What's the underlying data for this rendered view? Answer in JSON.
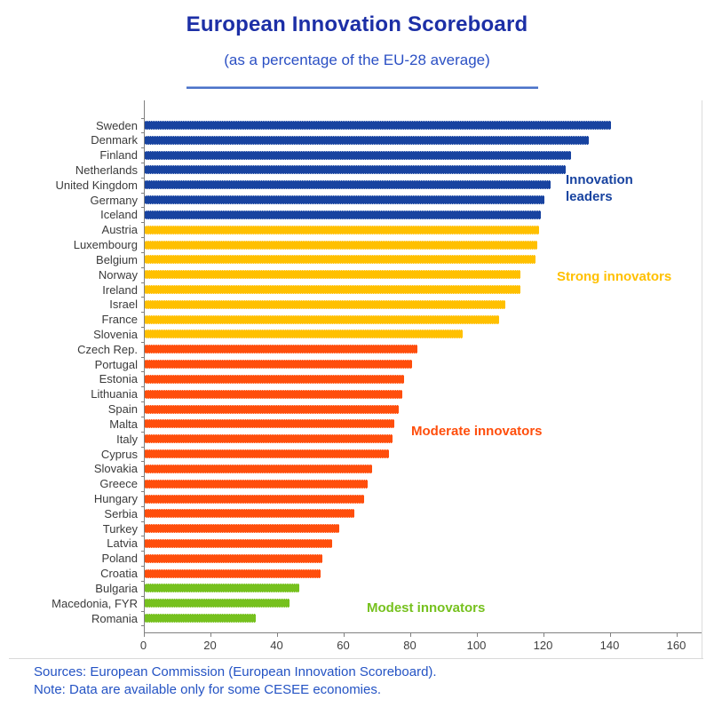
{
  "title": "European Innovation Scoreboard",
  "subtitle": "(as a percentage of the EU-28 average)",
  "colors": {
    "title_blue": "#1c2fa6",
    "note_blue": "#2453c4",
    "underline_blue": "#4a72c8",
    "axis_gray": "#808080",
    "leaders_blue": "#1843a0",
    "strong_yellow": "#ffc000",
    "moderate_orange": "#ff4e0c",
    "modest_green": "#76c11e"
  },
  "chart_data": {
    "type": "bar",
    "orientation": "horizontal",
    "title": "European Innovation Scoreboard",
    "subtitle": "(as a percentage of the EU-28 average)",
    "xlabel": "",
    "ylabel": "",
    "xlim": [
      0,
      160
    ],
    "xticks": [
      0,
      20,
      40,
      60,
      80,
      100,
      120,
      140,
      160
    ],
    "grid": false,
    "legend_position": "inline-annotations",
    "groups": [
      {
        "name": "Innovation leaders",
        "color": "#1843a0",
        "items": [
          {
            "country": "Sweden",
            "value": 140
          },
          {
            "country": "Denmark",
            "value": 133.5
          },
          {
            "country": "Finland",
            "value": 128
          },
          {
            "country": "Netherlands",
            "value": 126.5
          },
          {
            "country": "United Kingdom",
            "value": 122
          },
          {
            "country": "Germany",
            "value": 120
          },
          {
            "country": "Iceland",
            "value": 119
          }
        ]
      },
      {
        "name": "Strong innovators",
        "color": "#ffc000",
        "items": [
          {
            "country": "Austria",
            "value": 118.5
          },
          {
            "country": "Luxembourg",
            "value": 118
          },
          {
            "country": "Belgium",
            "value": 117.5
          },
          {
            "country": "Norway",
            "value": 113
          },
          {
            "country": "Ireland",
            "value": 113
          },
          {
            "country": "Israel",
            "value": 108.5
          },
          {
            "country": "France",
            "value": 106.5
          },
          {
            "country": "Slovenia",
            "value": 95.5
          }
        ]
      },
      {
        "name": "Moderate innovators",
        "color": "#ff4e0c",
        "items": [
          {
            "country": "Czech Rep.",
            "value": 82
          },
          {
            "country": "Portugal",
            "value": 80.5
          },
          {
            "country": "Estonia",
            "value": 78
          },
          {
            "country": "Lithuania",
            "value": 77.5
          },
          {
            "country": "Spain",
            "value": 76.5
          },
          {
            "country": "Malta",
            "value": 75
          },
          {
            "country": "Italy",
            "value": 74.5
          },
          {
            "country": "Cyprus",
            "value": 73.5
          },
          {
            "country": "Slovakia",
            "value": 68.5
          },
          {
            "country": "Greece",
            "value": 67
          },
          {
            "country": "Hungary",
            "value": 66
          },
          {
            "country": "Serbia",
            "value": 63
          },
          {
            "country": "Turkey",
            "value": 58.5
          },
          {
            "country": "Latvia",
            "value": 56.5
          },
          {
            "country": "Poland",
            "value": 53.5
          },
          {
            "country": "Croatia",
            "value": 53
          }
        ]
      },
      {
        "name": "Modest innovators",
        "color": "#76c11e",
        "items": [
          {
            "country": "Bulgaria",
            "value": 46.5
          },
          {
            "country": "Macedonia, FYR",
            "value": 43.5
          },
          {
            "country": "Romania",
            "value": 33.5
          }
        ]
      }
    ]
  },
  "footer": {
    "sources": "Sources: European Commission (European Innovation Scoreboard).",
    "note": "Note: Data are available only for some CESEE economies."
  }
}
